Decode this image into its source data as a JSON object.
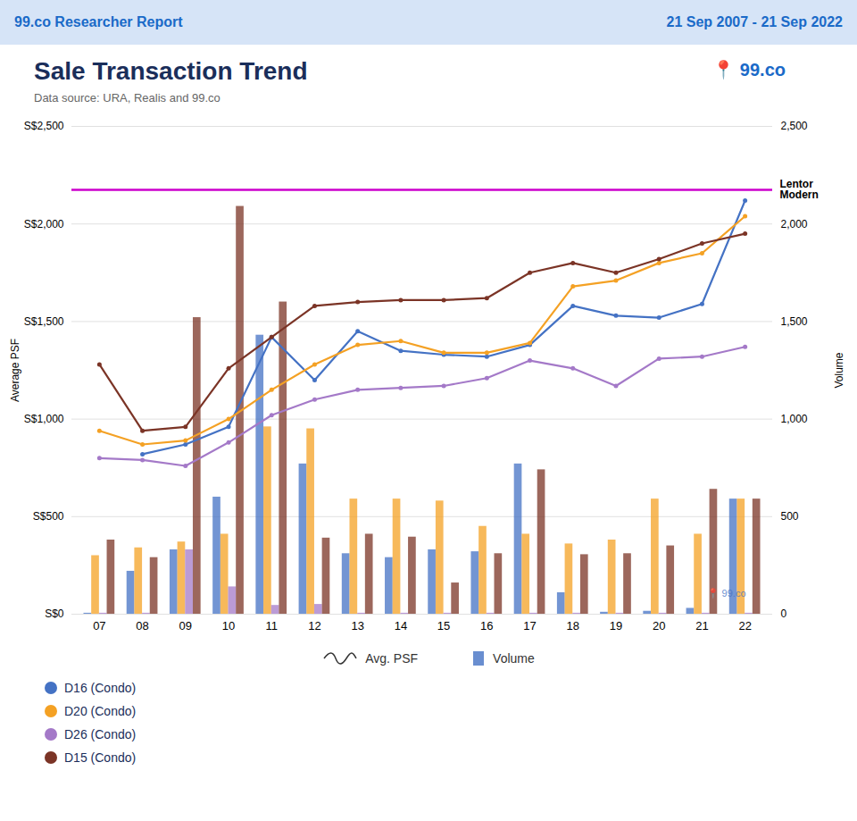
{
  "chart_data": {
    "type": "bar",
    "title": "Sale Transaction Trend",
    "subtitle": "Data source: URA, Realis and 99.co",
    "header": [
      "99.co Researcher Report",
      "21 Sep 2007 - 21 Sep 2022"
    ],
    "logo": "📍 99.co",
    "watermark": "📍 99.co",
    "categories": [
      "07",
      "08",
      "09",
      "10",
      "11",
      "12",
      "13",
      "14",
      "15",
      "16",
      "17",
      "18",
      "19",
      "20",
      "21",
      "22"
    ],
    "series": [
      {
        "name": "D16 (Condo)",
        "type": "bar",
        "axis": "y2",
        "color": "#4472C4",
        "values": [
          5,
          220,
          330,
          600,
          1430,
          770,
          310,
          290,
          330,
          320,
          770,
          110,
          10,
          15,
          30,
          590
        ]
      },
      {
        "name": "D20 (Condo)",
        "type": "bar",
        "axis": "y2",
        "color": "#F4A124",
        "values": [
          300,
          340,
          370,
          410,
          960,
          950,
          590,
          590,
          580,
          450,
          410,
          360,
          380,
          590,
          410,
          590
        ]
      },
      {
        "name": "D26 (Condo)",
        "type": "bar",
        "axis": "y2",
        "color": "#A479C8",
        "values": [
          5,
          5,
          330,
          140,
          45,
          50,
          5,
          5,
          5,
          5,
          5,
          5,
          5,
          5,
          5,
          5
        ]
      },
      {
        "name": "D15 (Condo)",
        "type": "bar",
        "axis": "y2",
        "color": "#7B3426",
        "values": [
          380,
          290,
          1520,
          2090,
          1600,
          390,
          410,
          395,
          160,
          310,
          740,
          305,
          310,
          350,
          640,
          590
        ]
      },
      {
        "name": "D16 (Condo)",
        "type": "line",
        "marker": "circle",
        "color": "#4472C4",
        "values": [
          null,
          820,
          870,
          960,
          1420,
          1200,
          1450,
          1350,
          1330,
          1320,
          1380,
          1580,
          1530,
          1520,
          1590,
          2120
        ]
      },
      {
        "name": "D20 (Condo)",
        "type": "line",
        "marker": "circle",
        "color": "#F4A124",
        "values": [
          940,
          870,
          890,
          1000,
          1150,
          1280,
          1380,
          1400,
          1340,
          1340,
          1390,
          1680,
          1710,
          1800,
          1850,
          2040
        ]
      },
      {
        "name": "D26 (Condo)",
        "type": "line",
        "marker": "circle",
        "color": "#A479C8",
        "values": [
          800,
          790,
          760,
          880,
          1020,
          1100,
          1150,
          1160,
          1170,
          1210,
          1300,
          1260,
          1170,
          1310,
          1320,
          1370
        ]
      },
      {
        "name": "D15 (Condo)",
        "type": "line",
        "marker": "circle",
        "color": "#7B3426",
        "values": [
          1280,
          940,
          960,
          1260,
          1420,
          1580,
          1600,
          1610,
          1610,
          1620,
          1750,
          1800,
          1750,
          1820,
          1900,
          1950
        ]
      }
    ],
    "ylabel": "Average PSF",
    "y2label": "Volume",
    "ylim": [
      0,
      2500
    ],
    "yticks": [
      {
        "value": 0,
        "label": "S$0"
      },
      {
        "value": 500,
        "label": "S$500"
      },
      {
        "value": 1000,
        "label": "S$1,000"
      },
      {
        "value": 1500,
        "label": "S$1,500"
      },
      {
        "value": 2000,
        "label": "S$2,000"
      },
      {
        "value": 2500,
        "label": "S$2,500"
      }
    ],
    "y2lim": [
      0,
      2500
    ],
    "y2ticks": [
      0,
      500,
      {
        "value": 1000,
        "label": "1,000"
      },
      {
        "value": 1500,
        "label": "1,500"
      },
      {
        "value": 2000,
        "label": "2,000"
      },
      {
        "value": 2500,
        "label": "2,500"
      }
    ],
    "grid": true,
    "legend": "bottom",
    "type_labels": {
      "line": "Avg. PSF",
      "bar": "Volume"
    },
    "annotations": [
      {
        "text": "Lentor\nModern",
        "y": 2175,
        "color": "#CC00CC"
      }
    ]
  }
}
